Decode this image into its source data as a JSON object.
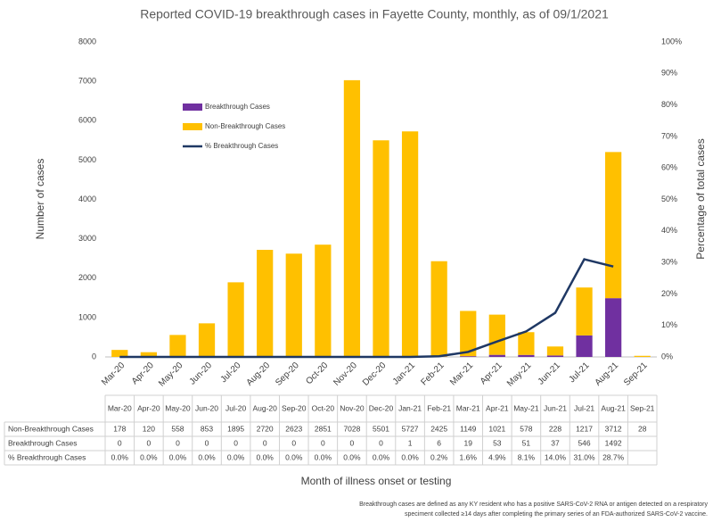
{
  "chart_data": {
    "type": "bar-line",
    "title": "Reported COVID-19 breakthrough cases in Fayette County, monthly, as of 09/1/2021",
    "ylabel": "Number of cases",
    "y2label": "Percentage of total cases",
    "xlabel": "Month of illness onset or testing",
    "categories": [
      "Mar-20",
      "Apr-20",
      "May-20",
      "Jun-20",
      "Jul-20",
      "Aug-20",
      "Sep-20",
      "Oct-20",
      "Nov-20",
      "Dec-20",
      "Jan-21",
      "Feb-21",
      "Mar-21",
      "Apr-21",
      "May-21",
      "Jun-21",
      "Jul-21",
      "Aug-21",
      "Sep-21"
    ],
    "series": [
      {
        "name": "Breakthrough Cases",
        "color": "#7030a0",
        "stack": true,
        "values": [
          0,
          0,
          0,
          0,
          0,
          0,
          0,
          0,
          0,
          0,
          1,
          6,
          19,
          53,
          51,
          37,
          546,
          1492,
          null
        ]
      },
      {
        "name": "Non-Breakthrough Cases",
        "color": "#ffc000",
        "stack": true,
        "values": [
          178,
          120,
          558,
          853,
          1895,
          2720,
          2623,
          2851,
          7028,
          5501,
          5727,
          2425,
          1149,
          1021,
          578,
          228,
          1217,
          3712,
          28
        ]
      },
      {
        "name": "% Breakthrough Cases",
        "color": "#1f3864",
        "axis": "y2",
        "kind": "line",
        "values": [
          0.0,
          0.0,
          0.0,
          0.0,
          0.0,
          0.0,
          0.0,
          0.0,
          0.0,
          0.0,
          0.0,
          0.2,
          1.6,
          4.9,
          8.1,
          14.0,
          31.0,
          28.7,
          null
        ],
        "value_labels": [
          "0.0%",
          "0.0%",
          "0.0%",
          "0.0%",
          "0.0%",
          "0.0%",
          "0.0%",
          "0.0%",
          "0.0%",
          "0.0%",
          "0.0%",
          "0.2%",
          "1.6%",
          "4.9%",
          "8.1%",
          "14.0%",
          "31.0%",
          "28.7%",
          null
        ]
      }
    ],
    "ylim": [
      0,
      8000
    ],
    "yticks": [
      0,
      1000,
      2000,
      3000,
      4000,
      5000,
      6000,
      7000,
      8000
    ],
    "y2lim": [
      0,
      100
    ],
    "y2ticks": [
      {
        "value": 0,
        "label": "0%"
      },
      {
        "value": 10,
        "label": "10%"
      },
      {
        "value": 20,
        "label": "20%"
      },
      {
        "value": 30,
        "label": "30%"
      },
      {
        "value": 40,
        "label": "40%"
      },
      {
        "value": 50,
        "label": "50%"
      },
      {
        "value": 60,
        "label": "60%"
      },
      {
        "value": 70,
        "label": "70%"
      },
      {
        "value": 80,
        "label": "80%"
      },
      {
        "value": 90,
        "label": "90%"
      },
      {
        "value": 100,
        "label": "100%"
      }
    ],
    "table_rows": [
      1,
      0,
      2
    ],
    "legend": "upper-left",
    "footnote": [
      "Breakthrough cases are defined as any KY resident who has a positive SARS-CoV-2 RNA or antigen detected on a respiratory",
      "speciment collected ≥14 days after completing the primary series of an FDA-authorized SARS-CoV-2 vaccine."
    ]
  }
}
